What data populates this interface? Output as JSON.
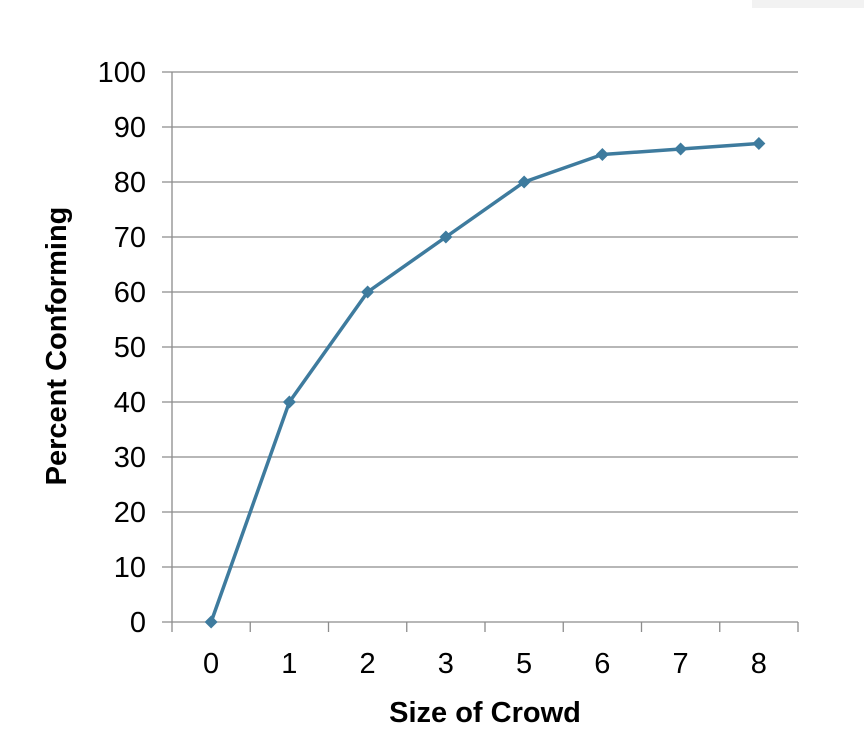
{
  "chart_data": {
    "type": "line",
    "title": "",
    "xlabel": "Size of Crowd",
    "ylabel": "Percent Conforming",
    "categories": [
      "0",
      "1",
      "2",
      "3",
      "5",
      "6",
      "7",
      "8"
    ],
    "series": [
      {
        "values": [
          0,
          40,
          60,
          70,
          80,
          85,
          86,
          87
        ],
        "color": "#3e7b9e",
        "marker": "diamond"
      }
    ],
    "ylim": [
      0,
      100
    ],
    "yticks": [
      0,
      10,
      20,
      30,
      40,
      50,
      60,
      70,
      80,
      90,
      100
    ],
    "grid": "horizontal",
    "legend": "none"
  }
}
